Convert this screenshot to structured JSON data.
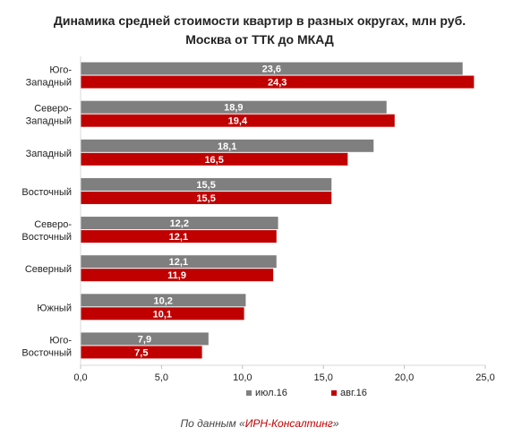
{
  "chart_data": {
    "type": "bar",
    "orientation": "horizontal",
    "title": "Динамика средней стоимости квартир в разных округах, млн руб.",
    "subtitle": "Москва от ТТК до МКАД",
    "categories": [
      [
        "Юго-",
        "Западный"
      ],
      [
        "Северо-",
        "Западный"
      ],
      [
        "Западный"
      ],
      [
        "Восточный"
      ],
      [
        "Северо-",
        "Восточный"
      ],
      [
        "Северный"
      ],
      [
        "Южный"
      ],
      [
        "Юго-",
        "Восточный"
      ]
    ],
    "series": [
      {
        "name": "июл.16",
        "color": "#7f7f7f",
        "values": [
          23.6,
          18.9,
          18.1,
          15.5,
          12.2,
          12.1,
          10.2,
          7.9
        ],
        "labels": [
          "23,6",
          "18,9",
          "18,1",
          "15,5",
          "12,2",
          "12,1",
          "10,2",
          "7,9"
        ]
      },
      {
        "name": "авг.16",
        "color": "#c00000",
        "values": [
          24.3,
          19.4,
          16.5,
          15.5,
          12.1,
          11.9,
          10.1,
          7.5
        ],
        "labels": [
          "24,3",
          "19,4",
          "16,5",
          "15,5",
          "12,1",
          "11,9",
          "10,1",
          "7,5"
        ]
      }
    ],
    "xlim": [
      0,
      25
    ],
    "xticks": [
      0,
      5,
      10,
      15,
      20,
      25
    ],
    "xtick_labels": [
      "0,0",
      "5,0",
      "10,0",
      "15,0",
      "20,0",
      "25,0"
    ],
    "grid": false,
    "legend_position": "bottom"
  },
  "footer": {
    "prefix": "По данным «",
    "source": "ИРН-Консалтинг",
    "suffix": "»"
  }
}
